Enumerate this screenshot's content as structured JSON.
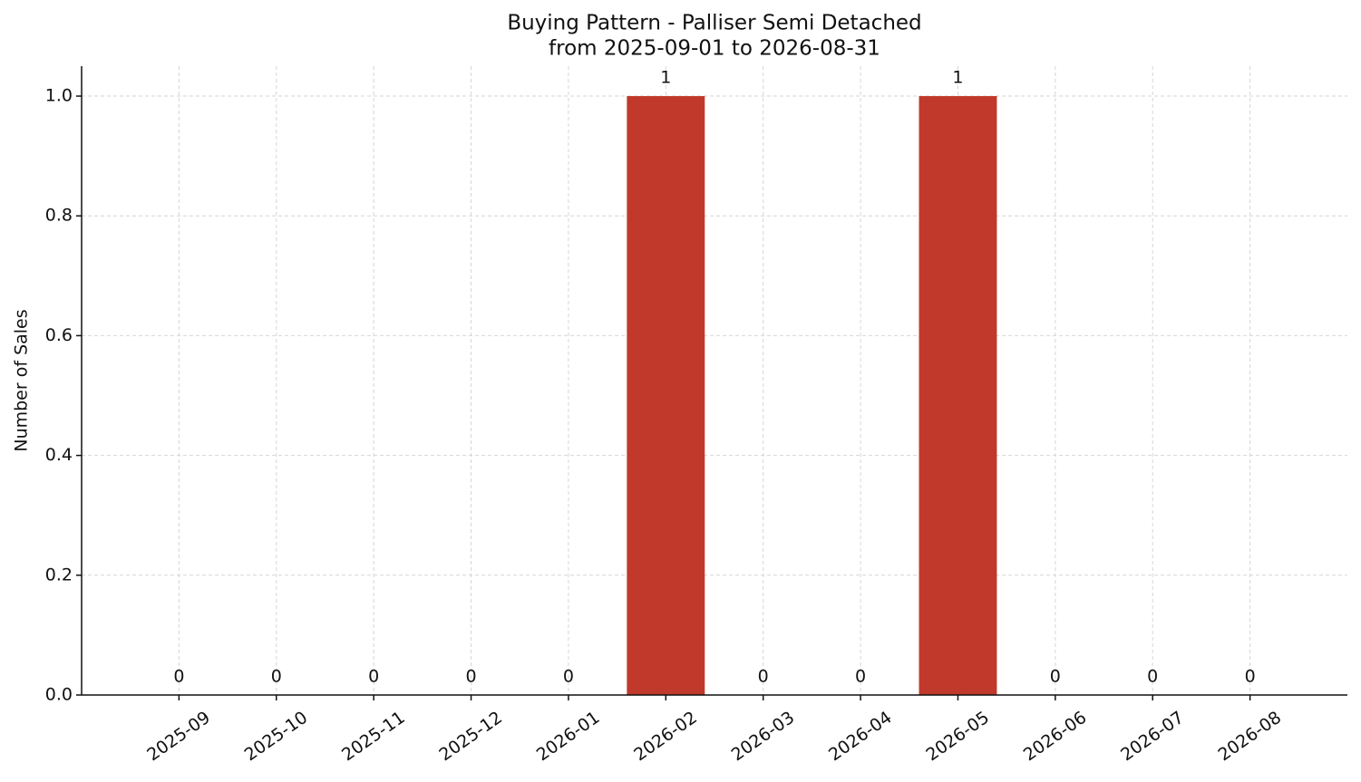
{
  "chart_data": {
    "type": "bar",
    "title": "Buying Pattern - Palliser Semi Detached",
    "subtitle": "from 2025-09-01 to 2026-08-31",
    "y_label": "Number of Sales",
    "categories": [
      "2025-09",
      "2025-10",
      "2025-11",
      "2025-12",
      "2026-01",
      "2026-02",
      "2026-03",
      "2026-04",
      "2026-05",
      "2026-06",
      "2026-07",
      "2026-08"
    ],
    "values": [
      0,
      0,
      0,
      0,
      0,
      1,
      0,
      0,
      1,
      0,
      0,
      0
    ],
    "color": "#c0392b",
    "ylim": [
      0,
      1.05
    ],
    "yticks": [
      {
        "value": 0,
        "label": "0.0"
      },
      {
        "value": 0.2,
        "label": "0.2"
      },
      {
        "value": 0.4,
        "label": "0.4"
      },
      {
        "value": 0.6,
        "label": "0.6"
      },
      {
        "value": 0.8,
        "label": "0.8"
      },
      {
        "value": 1,
        "label": "1.0"
      }
    ],
    "grid": true
  }
}
